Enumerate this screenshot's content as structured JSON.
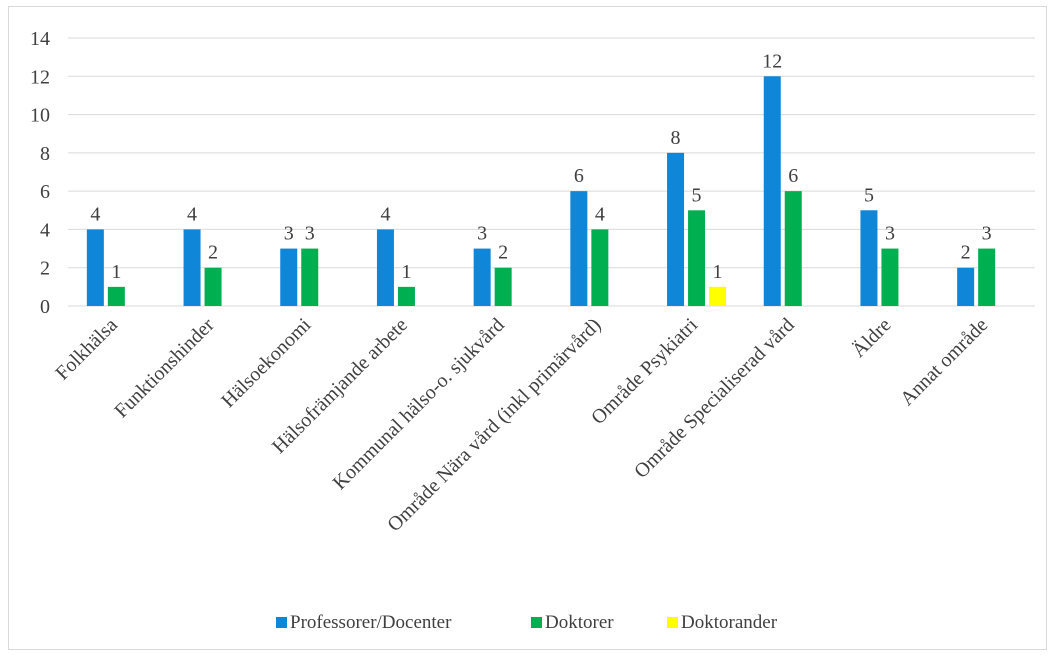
{
  "chart_data": {
    "type": "bar",
    "title": "",
    "xlabel": "",
    "ylabel": "",
    "ylim": [
      0,
      14
    ],
    "yticks": [
      0,
      2,
      4,
      6,
      8,
      10,
      12,
      14
    ],
    "grid": true,
    "legend_position": "bottom",
    "categories": [
      "Folkhälsa",
      "Funktionshinder",
      "Hälsoekonomi",
      "Hälsofrämjande arbete",
      "Kommunal hälso-o. sjukvård",
      "Område Nära vård (inkl primärvård)",
      "Område Psykiatri",
      "Område Specialiserad vård",
      "Äldre",
      "Annat område"
    ],
    "series": [
      {
        "name": "Professorer/Docenter",
        "color": "#0F86D8",
        "values": [
          4,
          4,
          3,
          4,
          3,
          6,
          8,
          12,
          5,
          2
        ]
      },
      {
        "name": "Doktorer",
        "color": "#00B050",
        "values": [
          1,
          2,
          3,
          1,
          2,
          4,
          5,
          6,
          3,
          3
        ]
      },
      {
        "name": "Doktorander",
        "color": "#FFFF00",
        "values": [
          null,
          null,
          null,
          null,
          null,
          null,
          1,
          null,
          null,
          null
        ]
      }
    ]
  }
}
